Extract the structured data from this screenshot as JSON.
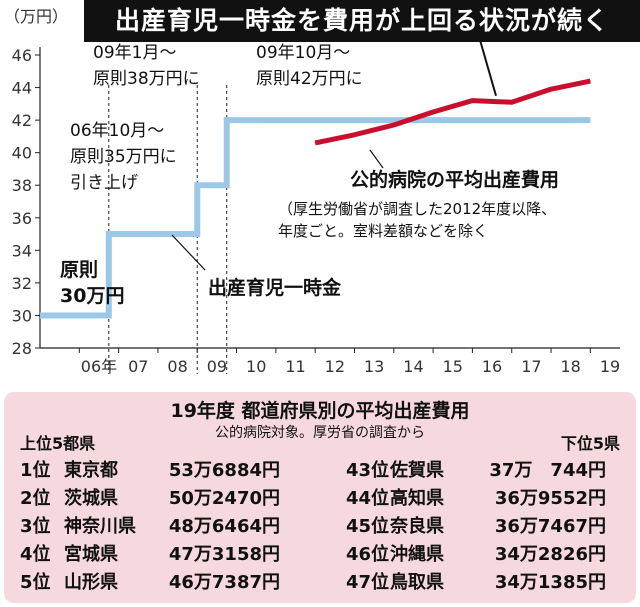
{
  "banner": "出産育児一時金を費用が上回る状況が続く",
  "chart_data": {
    "type": "line",
    "y_unit": "（万円）",
    "ylim": [
      28,
      46
    ],
    "y_ticks": [
      "28",
      "30",
      "32",
      "34",
      "36",
      "38",
      "40",
      "42",
      "44",
      "46"
    ],
    "x_ticks": [
      "06年",
      "07",
      "08",
      "09",
      "10",
      "11",
      "12",
      "13",
      "14",
      "15",
      "16",
      "17",
      "18",
      "19"
    ],
    "series": [
      {
        "name": "出産育児一時金",
        "color": "#9cc8e8",
        "step_points": [
          [
            2005.0,
            30
          ],
          [
            2006.75,
            30
          ],
          [
            2006.75,
            35
          ],
          [
            2009.0,
            35
          ],
          [
            2009.0,
            38
          ],
          [
            2009.75,
            38
          ],
          [
            2009.75,
            42
          ],
          [
            2019.0,
            42
          ]
        ]
      },
      {
        "name": "公的病院の平均出産費用",
        "color": "#c8102e",
        "points": [
          [
            2012,
            40.6
          ],
          [
            2013,
            41.1
          ],
          [
            2014,
            41.7
          ],
          [
            2015,
            42.5
          ],
          [
            2016,
            43.2
          ],
          [
            2017,
            43.1
          ],
          [
            2018,
            43.9
          ],
          [
            2019,
            44.4
          ]
        ]
      }
    ],
    "annotations": {
      "change_2009_10": [
        "09年10月～",
        "原則42万円に"
      ],
      "change_2009_01": [
        "09年1月～",
        "原則38万円に"
      ],
      "change_2006": [
        "06年10月～",
        "原則35万円に",
        "引き上げ"
      ],
      "initial": [
        "原則",
        "30万円"
      ],
      "lump_sum_label": "出産育児一時金",
      "hospital_label": "公的病院の平均出産費用",
      "hospital_note": [
        "（厚生労働省が調査した2012年度以降、",
        "年度ごと。室料差額などを除く"
      ]
    }
  },
  "table": {
    "title": "19年度 都道府県別の平均出産費用",
    "subtitle": "公的病院対象。厚労省の調査から",
    "top_label": "上位5都県",
    "bottom_label": "下位5県",
    "top": [
      {
        "rank": "1位",
        "pref": "東京都",
        "amount": "53万6884円"
      },
      {
        "rank": "2位",
        "pref": "茨城県",
        "amount": "50万2470円"
      },
      {
        "rank": "3位",
        "pref": "神奈川県",
        "amount": "48万6464円"
      },
      {
        "rank": "4位",
        "pref": "宮城県",
        "amount": "47万3158円"
      },
      {
        "rank": "5位",
        "pref": "山形県",
        "amount": "46万7387円"
      }
    ],
    "bottom": [
      {
        "rank": "43位",
        "pref": "佐賀県",
        "amount": "37万　744円"
      },
      {
        "rank": "44位",
        "pref": "高知県",
        "amount": "36万9552円"
      },
      {
        "rank": "45位",
        "pref": "奈良県",
        "amount": "36万7467円"
      },
      {
        "rank": "46位",
        "pref": "沖縄県",
        "amount": "34万2826円"
      },
      {
        "rank": "47位",
        "pref": "鳥取県",
        "amount": "34万1385円"
      }
    ]
  }
}
